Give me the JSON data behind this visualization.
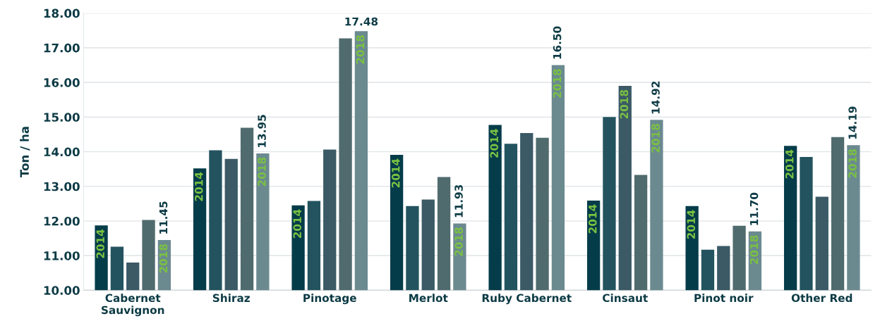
{
  "chart_data": {
    "type": "bar",
    "ylabel": "Ton / ha",
    "categories": [
      "Cabernet\nSauvignon",
      "Shiraz",
      "Pinotage",
      "Merlot",
      "Ruby Cabernet",
      "Cinsaut",
      "Pinot noir",
      "Other Red"
    ],
    "series": [
      {
        "name": "2014",
        "color": "#053c4a",
        "values": [
          11.87,
          13.52,
          12.45,
          13.91,
          14.77,
          12.59,
          12.43,
          14.17
        ]
      },
      {
        "color": "#23535f",
        "values": [
          11.26,
          14.04,
          12.58,
          12.43,
          14.23,
          15.0,
          11.17,
          13.85
        ]
      },
      {
        "color": "#3b5a66",
        "values": [
          10.8,
          13.79,
          14.06,
          12.62,
          14.54,
          15.9,
          11.28,
          12.7
        ]
      },
      {
        "color": "#506b6e",
        "values": [
          12.03,
          14.69,
          17.27,
          13.27,
          14.4,
          13.33,
          11.86,
          14.42
        ]
      },
      {
        "name": "2018",
        "color": "#6b8a90",
        "values": [
          11.45,
          13.95,
          17.48,
          11.93,
          16.5,
          14.92,
          11.7,
          14.19
        ],
        "value_labels": [
          "11.45",
          "13.95",
          "17.48",
          "11.93",
          "16.50",
          "14.92",
          "11.70",
          "14.19"
        ]
      }
    ],
    "annotations": [
      {
        "text": "2018",
        "x": "Cinsaut",
        "y": 15.9
      }
    ],
    "ylim": [
      10,
      18
    ],
    "yticks": [
      {
        "value": 10,
        "label": "10.00"
      },
      {
        "value": 11,
        "label": "11.00"
      },
      {
        "value": 12,
        "label": "12.00"
      },
      {
        "value": 13,
        "label": "13.00"
      },
      {
        "value": 14,
        "label": "14.00"
      },
      {
        "value": 15,
        "label": "15.00"
      },
      {
        "value": 16,
        "label": "16.00"
      },
      {
        "value": 17,
        "label": "17.00"
      },
      {
        "value": 18,
        "label": "18.00"
      }
    ],
    "grid": "y",
    "legend": false
  }
}
